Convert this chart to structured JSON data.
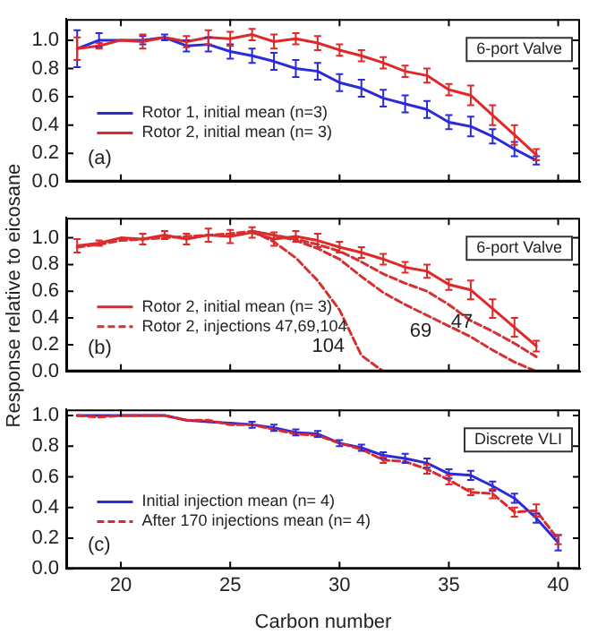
{
  "chart_data": [
    {
      "type": "line",
      "x": [
        18,
        19,
        20,
        21,
        22,
        23,
        24,
        25,
        26,
        27,
        28,
        29,
        30,
        31,
        32,
        33,
        34,
        35,
        36,
        37,
        38,
        39
      ],
      "xlim": [
        17.5,
        41
      ],
      "xticks": [
        20,
        25,
        30,
        35,
        40
      ],
      "ylim": [
        0,
        1.15
      ],
      "yticks": [
        {
          "value": 0,
          "label": "0.0"
        },
        {
          "value": 0.2,
          "label": "0.2"
        },
        {
          "value": 0.4,
          "label": "0.4"
        },
        {
          "value": 0.6,
          "label": "0.6"
        },
        {
          "value": 0.8,
          "label": "0.8"
        },
        {
          "value": 1,
          "label": "1.0"
        }
      ],
      "tick_labels": "y",
      "legend": "left",
      "annotations": [
        "(a)",
        "6-port Valve"
      ],
      "series": [
        {
          "name": "Rotor 1, initial mean (n=3)",
          "color": "#2b2bd9",
          "values": [
            0.94,
            1.0,
            1.0,
            1.0,
            1.02,
            0.96,
            0.97,
            0.92,
            0.89,
            0.85,
            0.8,
            0.78,
            0.7,
            0.66,
            0.59,
            0.55,
            0.51,
            0.42,
            0.39,
            0.32,
            0.23,
            0.15
          ],
          "errors": [
            0.13,
            0.05,
            null,
            0.03,
            0.02,
            0.04,
            0.05,
            0.05,
            0.05,
            0.06,
            0.06,
            0.06,
            0.06,
            0.06,
            0.06,
            0.06,
            0.06,
            0.05,
            0.07,
            0.05,
            0.05,
            0.03
          ]
        },
        {
          "name": "Rotor 2, initial mean (n= 3)",
          "color": "#e02828",
          "values": [
            0.94,
            0.96,
            1.0,
            0.99,
            1.02,
            0.99,
            1.02,
            1.01,
            1.04,
            0.99,
            1.01,
            0.98,
            0.93,
            0.89,
            0.84,
            0.78,
            0.75,
            0.65,
            0.61,
            0.47,
            0.33,
            0.19
          ],
          "errors": [
            0.08,
            0.02,
            null,
            0.05,
            null,
            0.04,
            0.05,
            0.05,
            0.04,
            0.05,
            0.04,
            0.05,
            0.04,
            0.04,
            0.04,
            0.04,
            0.05,
            0.04,
            0.07,
            0.07,
            0.07,
            0.04
          ]
        }
      ]
    },
    {
      "type": "line",
      "x": [
        18,
        19,
        20,
        21,
        22,
        23,
        24,
        25,
        26,
        27,
        28,
        29,
        30,
        31,
        32,
        33,
        34,
        35,
        36,
        37,
        38,
        39
      ],
      "xlim": [
        17.5,
        41
      ],
      "xticks": [
        20,
        25,
        30,
        35,
        40
      ],
      "ylim": [
        0,
        1.15
      ],
      "yticks": [
        {
          "value": 0,
          "label": "0.0"
        },
        {
          "value": 0.2,
          "label": "0.2"
        },
        {
          "value": 0.4,
          "label": "0.4"
        },
        {
          "value": 0.6,
          "label": "0.6"
        },
        {
          "value": 0.8,
          "label": "0.8"
        },
        {
          "value": 1,
          "label": "1.0"
        }
      ],
      "tick_labels": "y",
      "legend": "left",
      "ylabel": "Response relative to eicosane",
      "annotations": [
        "(b)",
        "6-port Valve",
        "104",
        "69",
        "47"
      ],
      "series": [
        {
          "name": "Rotor 2, initial mean (n= 3)",
          "color": "#e02828",
          "line_style": "solid",
          "values": [
            0.94,
            0.96,
            1.0,
            0.99,
            1.02,
            0.99,
            1.02,
            1.01,
            1.04,
            0.99,
            1.01,
            0.98,
            0.93,
            0.89,
            0.84,
            0.78,
            0.75,
            0.65,
            0.61,
            0.47,
            0.33,
            0.19
          ],
          "errors": [
            0.05,
            0.02,
            null,
            0.04,
            0.03,
            0.04,
            0.05,
            0.05,
            0.04,
            0.05,
            0.04,
            0.05,
            0.04,
            0.04,
            0.04,
            0.04,
            0.05,
            0.04,
            0.07,
            0.07,
            0.07,
            0.04
          ]
        },
        {
          "name": "Rotor 2, injections 47,69,104",
          "color": "#d23232",
          "line_style": "dashed",
          "values": [
            0.93,
            0.95,
            0.98,
            0.99,
            1.0,
            1.01,
            1.02,
            1.03,
            1.05,
            1.02,
            0.99,
            0.95,
            0.9,
            0.82,
            0.73,
            0.66,
            0.6,
            0.5,
            0.38,
            0.3,
            0.21,
            0.11
          ]
        },
        {
          "color": "#d23232",
          "line_style": "dashed",
          "values": [
            null,
            null,
            null,
            null,
            null,
            null,
            null,
            null,
            1.05,
            1.02,
            0.98,
            0.92,
            0.84,
            0.71,
            0.59,
            0.5,
            0.42,
            0.34,
            0.26,
            0.16,
            0.07,
            0.0
          ]
        },
        {
          "color": "#d23232",
          "line_style": "dashed",
          "values": [
            null,
            null,
            null,
            null,
            null,
            null,
            null,
            null,
            1.05,
            0.97,
            0.85,
            0.68,
            0.46,
            0.12,
            0.0,
            null,
            null,
            null,
            null,
            null,
            null,
            null
          ]
        }
      ]
    },
    {
      "type": "line",
      "x": [
        18,
        19,
        20,
        21,
        22,
        23,
        24,
        25,
        26,
        27,
        28,
        29,
        30,
        31,
        32,
        33,
        34,
        35,
        36,
        37,
        38,
        39,
        40
      ],
      "xlim": [
        17.5,
        41
      ],
      "xticks": [
        20,
        25,
        30,
        35,
        40
      ],
      "ylim": [
        0,
        1.04
      ],
      "yticks": [
        {
          "value": 0,
          "label": "0.0"
        },
        {
          "value": 0.2,
          "label": "0.2"
        },
        {
          "value": 0.4,
          "label": "0.4"
        },
        {
          "value": 0.6,
          "label": "0.6"
        },
        {
          "value": 0.8,
          "label": "0.8"
        },
        {
          "value": 1,
          "label": "1.0"
        }
      ],
      "legend": "left",
      "xlabel": "Carbon number",
      "annotations": [
        "(c)",
        "Discrete VLI"
      ],
      "series": [
        {
          "name": "Initial injection mean (n= 4)",
          "color": "#2b2bd9",
          "line_style": "solid",
          "values": [
            1.0,
            1.0,
            1.0,
            1.0,
            1.0,
            0.97,
            0.96,
            0.95,
            0.94,
            0.92,
            0.89,
            0.88,
            0.82,
            0.79,
            0.74,
            0.72,
            0.69,
            0.62,
            0.61,
            0.54,
            0.46,
            0.33,
            0.17
          ],
          "errors": [
            null,
            null,
            null,
            null,
            null,
            null,
            null,
            null,
            0.02,
            0.02,
            0.02,
            0.02,
            0.02,
            0.02,
            0.02,
            0.03,
            0.03,
            0.03,
            0.03,
            0.03,
            0.03,
            0.03,
            0.05
          ]
        },
        {
          "name": "After 170 injections mean (n= 4)",
          "color": "#e02828",
          "line_style": "dashed",
          "values": [
            1.0,
            0.99,
            1.0,
            1.0,
            1.0,
            0.97,
            0.97,
            0.94,
            0.94,
            0.91,
            0.88,
            0.87,
            0.82,
            0.78,
            0.71,
            0.7,
            0.65,
            0.58,
            0.5,
            0.49,
            0.37,
            0.38,
            0.19
          ],
          "errors": [
            null,
            null,
            null,
            null,
            null,
            null,
            null,
            null,
            null,
            null,
            null,
            null,
            null,
            null,
            0.02,
            null,
            0.03,
            0.03,
            0.02,
            0.03,
            0.03,
            0.04,
            0.03
          ]
        }
      ]
    }
  ]
}
